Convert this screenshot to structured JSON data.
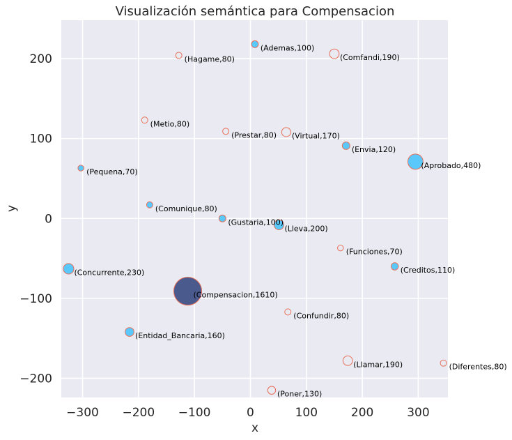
{
  "chart_data": {
    "type": "scatter",
    "title": "Visualización semántica para Compensacion",
    "xlabel": "x",
    "ylabel": "y",
    "xlim": [
      -338,
      353
    ],
    "ylim": [
      -224,
      248
    ],
    "xticks": [
      -300,
      -200,
      -100,
      0,
      100,
      200,
      300
    ],
    "yticks": [
      -200,
      -100,
      0,
      100,
      200
    ],
    "xtick_labels": [
      "−300",
      "−200",
      "−100",
      "0",
      "100",
      "200",
      "300"
    ],
    "ytick_labels": [
      "−200",
      "−100",
      "0",
      "100",
      "200"
    ],
    "grid": true,
    "colors": {
      "background": "#eaeaf2",
      "grid": "#ffffff",
      "filled": "#5ac8fa",
      "highlight": "#4a5a8c",
      "edge": "#e8705a"
    },
    "points": [
      {
        "label": "(Ademas,100)",
        "x": 8,
        "y": 218,
        "size": 100,
        "style": "filled"
      },
      {
        "label": "(Hagame,80)",
        "x": -128,
        "y": 204,
        "size": 80,
        "style": "hollow"
      },
      {
        "label": "(Comfandi,190)",
        "x": 150,
        "y": 206,
        "size": 190,
        "style": "hollow"
      },
      {
        "label": "(Metio,80)",
        "x": -189,
        "y": 123,
        "size": 80,
        "style": "hollow"
      },
      {
        "label": "(Prestar,80)",
        "x": -44,
        "y": 109,
        "size": 80,
        "style": "hollow"
      },
      {
        "label": "(Virtual,170)",
        "x": 64,
        "y": 108,
        "size": 170,
        "style": "hollow"
      },
      {
        "label": "(Envia,120)",
        "x": 171,
        "y": 91,
        "size": 120,
        "style": "filled"
      },
      {
        "label": "(Aprobado,480)",
        "x": 295,
        "y": 71,
        "size": 480,
        "style": "filled"
      },
      {
        "label": "(Pequena,70)",
        "x": -303,
        "y": 63,
        "size": 70,
        "style": "filled"
      },
      {
        "label": "(Comunique,80)",
        "x": -180,
        "y": 17,
        "size": 80,
        "style": "filled"
      },
      {
        "label": "(Gustaria,100)",
        "x": -50,
        "y": 0,
        "size": 100,
        "style": "filled"
      },
      {
        "label": "(Lleva,200)",
        "x": 51,
        "y": -8,
        "size": 200,
        "style": "filled"
      },
      {
        "label": "(Funciones,70)",
        "x": 161,
        "y": -37,
        "size": 70,
        "style": "hollow"
      },
      {
        "label": "(Concurrente,230)",
        "x": -325,
        "y": -63,
        "size": 230,
        "style": "filled"
      },
      {
        "label": "(Creditos,110)",
        "x": 258,
        "y": -60,
        "size": 110,
        "style": "filled"
      },
      {
        "label": "(Compensacion,1610)",
        "x": -112,
        "y": -91,
        "size": 1610,
        "style": "highlight"
      },
      {
        "label": "(Confundir,80)",
        "x": 67,
        "y": -117,
        "size": 80,
        "style": "hollow"
      },
      {
        "label": "(Entidad_Bancaria,160)",
        "x": -216,
        "y": -142,
        "size": 160,
        "style": "filled"
      },
      {
        "label": "(Llamar,190)",
        "x": 174,
        "y": -178,
        "size": 190,
        "style": "hollow"
      },
      {
        "label": "(Diferentes,80)",
        "x": 345,
        "y": -181,
        "size": 80,
        "style": "hollow"
      },
      {
        "label": "(Poner,130)",
        "x": 38,
        "y": -215,
        "size": 130,
        "style": "hollow"
      }
    ]
  }
}
